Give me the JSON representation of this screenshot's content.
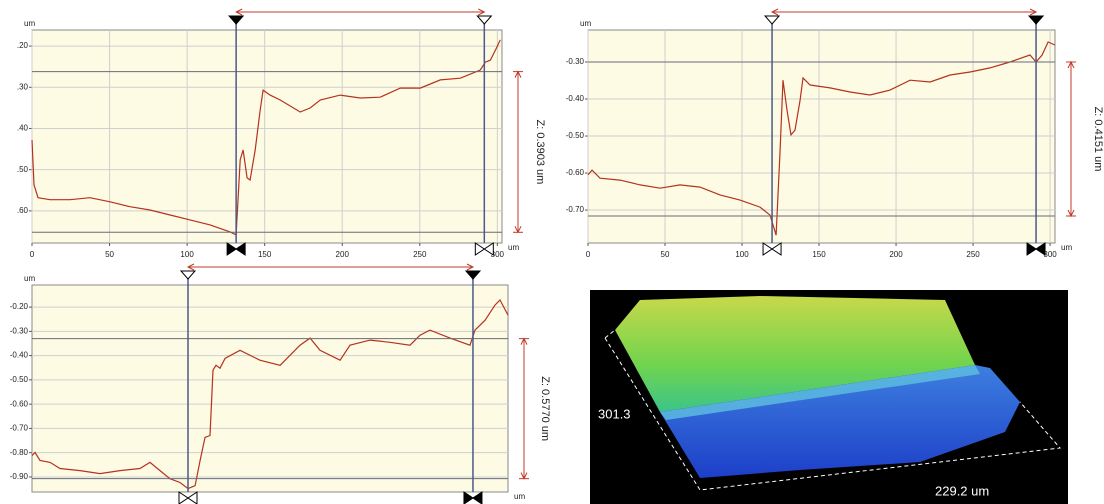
{
  "chart_data": [
    {
      "type": "line",
      "y_unit": "um",
      "x_unit": "um",
      "annotation": "Z: 0.3903 um",
      "color": "#b5321f",
      "xlim": [
        0,
        303
      ],
      "ylim": [
        -0.678,
        -0.161
      ],
      "xticks": [
        0,
        50,
        100,
        150,
        200,
        250,
        300
      ],
      "yticks": [
        {
          "value": -0.2,
          "label": ".20"
        },
        {
          "value": -0.3,
          "label": ".30"
        },
        {
          "value": -0.4,
          "label": ".40"
        },
        {
          "value": -0.5,
          "label": ".50"
        },
        {
          "value": -0.6,
          "label": ".60"
        }
      ],
      "cursors": {
        "x": [
          131.6,
          291.6
        ],
        "y": [
          -0.262,
          -0.652
        ]
      },
      "x": [
        0,
        1.3,
        3.9,
        11.6,
        24.5,
        37.4,
        50.3,
        63.2,
        76.1,
        89,
        101.9,
        114.8,
        127.7,
        131.6,
        134.2,
        136.1,
        138.7,
        140.6,
        143.9,
        147.1,
        149,
        153.5,
        160,
        172.9,
        179.4,
        185.8,
        198.7,
        211.6,
        224.5,
        237.4,
        250.3,
        263.2,
        276.1,
        289,
        292.3,
        295.5,
        299.4,
        301.9
      ],
      "values": [
        -0.428,
        -0.537,
        -0.568,
        -0.573,
        -0.573,
        -0.568,
        -0.578,
        -0.59,
        -0.598,
        -0.61,
        -0.622,
        -0.634,
        -0.651,
        -0.658,
        -0.476,
        -0.452,
        -0.52,
        -0.525,
        -0.452,
        -0.355,
        -0.307,
        -0.319,
        -0.331,
        -0.36,
        -0.35,
        -0.331,
        -0.319,
        -0.326,
        -0.324,
        -0.302,
        -0.302,
        -0.282,
        -0.278,
        -0.258,
        -0.239,
        -0.234,
        -0.205,
        -0.185
      ]
    },
    {
      "type": "line",
      "y_unit": "um",
      "x_unit": "um",
      "annotation": "Z: 0.4151 um",
      "color": "#b5321f",
      "xlim": [
        0,
        303.2
      ],
      "ylim": [
        -0.789,
        -0.2135
      ],
      "xticks": [
        0,
        50,
        100,
        150,
        200,
        250,
        300
      ],
      "yticks": [
        {
          "value": -0.3,
          "label": "-0.30"
        },
        {
          "value": -0.4,
          "label": "-0.40"
        },
        {
          "value": -0.5,
          "label": "-0.50"
        },
        {
          "value": -0.6,
          "label": "-0.60"
        },
        {
          "value": -0.7,
          "label": "-0.70"
        }
      ],
      "cursors": {
        "x": [
          119.5,
          290.9
        ],
        "y": [
          -0.3,
          -0.716
        ]
      },
      "x": [
        0,
        2.6,
        7.8,
        20.8,
        33.8,
        46.8,
        59.7,
        72.7,
        85.7,
        98.7,
        111.7,
        118.2,
        122.1,
        124.7,
        126.6,
        129.2,
        131.8,
        134.4,
        137.7,
        139.6,
        144.2,
        157.1,
        170.1,
        183.1,
        196.1,
        209.1,
        222.1,
        235.1,
        248.1,
        261,
        274,
        287,
        290.9,
        294.8,
        298.7,
        303.2
      ],
      "values": [
        -0.605,
        -0.592,
        -0.614,
        -0.619,
        -0.632,
        -0.641,
        -0.632,
        -0.638,
        -0.659,
        -0.673,
        -0.692,
        -0.714,
        -0.768,
        -0.538,
        -0.349,
        -0.43,
        -0.497,
        -0.484,
        -0.403,
        -0.343,
        -0.362,
        -0.37,
        -0.381,
        -0.389,
        -0.376,
        -0.349,
        -0.354,
        -0.335,
        -0.327,
        -0.316,
        -0.3,
        -0.281,
        -0.3,
        -0.281,
        -0.246,
        -0.254
      ]
    },
    {
      "type": "line",
      "y_unit": "um",
      "x_unit": "um",
      "annotation": "Z: 0.5770 um",
      "color": "#b5321f",
      "xlim": [
        0,
        303
      ],
      "ylim": [
        -0.962,
        -0.109
      ],
      "yticks": [
        {
          "value": -0.2,
          "label": "-0.20"
        },
        {
          "value": -0.3,
          "label": "-0.30"
        },
        {
          "value": -0.4,
          "label": "-0.40"
        },
        {
          "value": -0.5,
          "label": "-0.50"
        },
        {
          "value": -0.6,
          "label": "-0.60"
        },
        {
          "value": -0.7,
          "label": "-0.70"
        },
        {
          "value": -0.8,
          "label": "-0.80"
        },
        {
          "value": -0.9,
          "label": "-0.90"
        }
      ],
      "cursors": {
        "x": [
          99.3,
          280.7
        ],
        "y": [
          -0.33,
          -0.907
        ]
      },
      "x": [
        0,
        1.9,
        5.1,
        11.5,
        17.8,
        30.6,
        43.3,
        56,
        68.7,
        75.1,
        81.5,
        87.8,
        94.2,
        99.3,
        103.8,
        107,
        110.1,
        113.3,
        115.2,
        117.1,
        119.7,
        122.9,
        132.4,
        145.1,
        157.9,
        170.6,
        177,
        183.3,
        196.1,
        202.4,
        215.2,
        227.9,
        240.6,
        247,
        253.3,
        266.1,
        278.8,
        282,
        288.4,
        294.7,
        297.9,
        303
      ],
      "values": [
        -0.812,
        -0.799,
        -0.832,
        -0.84,
        -0.865,
        -0.874,
        -0.886,
        -0.874,
        -0.865,
        -0.84,
        -0.874,
        -0.907,
        -0.923,
        -0.948,
        -0.936,
        -0.832,
        -0.737,
        -0.729,
        -0.46,
        -0.44,
        -0.452,
        -0.411,
        -0.378,
        -0.419,
        -0.44,
        -0.357,
        -0.328,
        -0.378,
        -0.419,
        -0.357,
        -0.336,
        -0.345,
        -0.357,
        -0.316,
        -0.295,
        -0.328,
        -0.357,
        -0.295,
        -0.254,
        -0.192,
        -0.171,
        -0.233
      ]
    }
  ],
  "surface_view": {
    "length_label": "301.3",
    "width_label": "229.2 um"
  }
}
